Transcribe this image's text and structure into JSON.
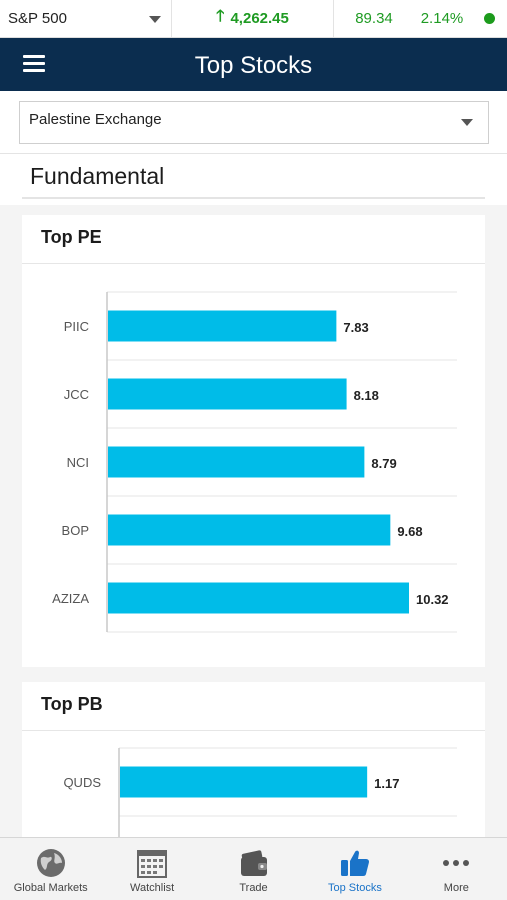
{
  "ticker": {
    "index_name": "S&P 500",
    "value": "4,262.45",
    "change": "89.34",
    "change_pct": "2.14%",
    "trend_icon": "arrow-up-icon",
    "status_color": "#1c9b1c"
  },
  "header": {
    "title": "Top Stocks",
    "menu_icon": "hamburger-menu-icon",
    "background": "#0b2d4f"
  },
  "exchange_selector": {
    "selected": "Palestine Exchange"
  },
  "section": {
    "title": "Fundamental"
  },
  "cards": [
    {
      "title": "Top PE"
    },
    {
      "title": "Top PB"
    }
  ],
  "chart_data": [
    {
      "type": "bar",
      "orientation": "horizontal",
      "title": "Top PE",
      "categories": [
        "PIIC",
        "JCC",
        "NCI",
        "BOP",
        "AZIZA"
      ],
      "values": [
        7.83,
        8.18,
        8.79,
        9.68,
        10.32
      ],
      "value_labels": [
        "7.83",
        "8.18",
        "8.79",
        "9.68",
        "10.32"
      ],
      "xlim": [
        0,
        12
      ],
      "grid": true,
      "bar_color": "#00bce8"
    },
    {
      "type": "bar",
      "orientation": "horizontal",
      "title": "Top PB",
      "categories": [
        "QUDS"
      ],
      "values": [
        1.17
      ],
      "value_labels": [
        "1.17"
      ],
      "xlim": [
        0,
        1.6
      ],
      "grid": true,
      "bar_color": "#00bce8"
    }
  ],
  "bottom_nav": {
    "items": [
      {
        "label": "Global Markets",
        "icon": "globe-icon"
      },
      {
        "label": "Watchlist",
        "icon": "calendar-grid-icon"
      },
      {
        "label": "Trade",
        "icon": "wallet-icon"
      },
      {
        "label": "Top Stocks",
        "icon": "thumbs-up-icon",
        "active": true
      },
      {
        "label": "More",
        "icon": "more-dots-icon"
      }
    ],
    "active_color": "#1a73c8"
  }
}
